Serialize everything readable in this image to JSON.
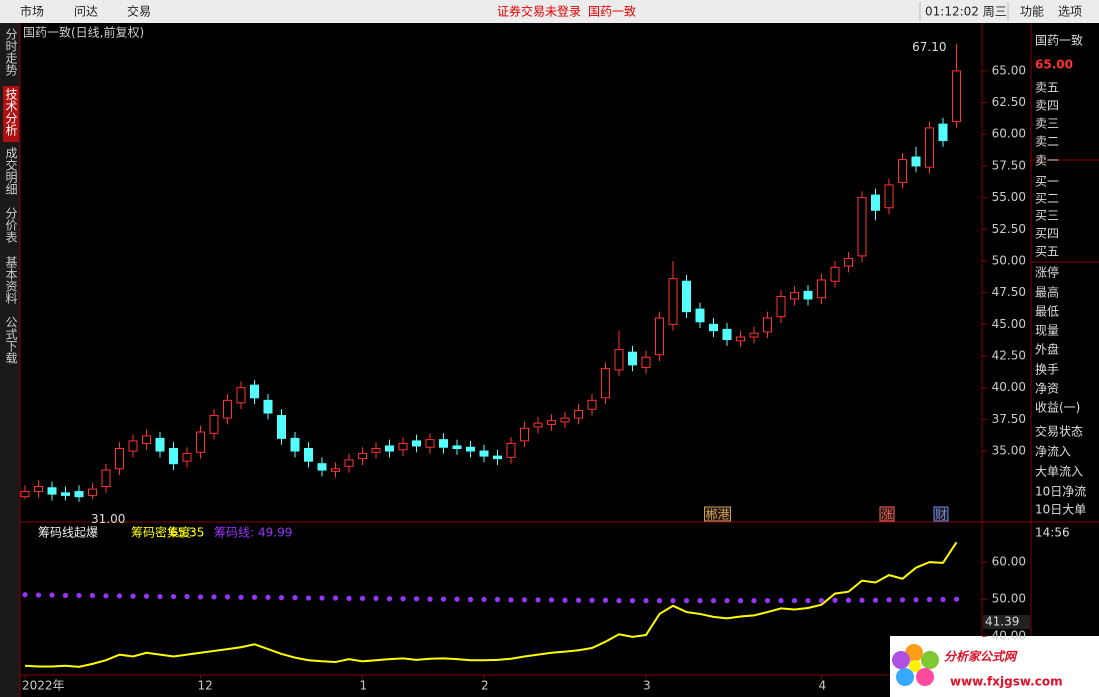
{
  "menu": {
    "items": [
      "市场",
      "问达",
      "交易"
    ],
    "status": "证券交易未登录",
    "stock": "国药一致",
    "time": "01:12:02 周三",
    "buttons": [
      "功能",
      "选项"
    ]
  },
  "side_tabs": [
    "分时走势",
    "技术分析",
    "成交明细",
    "分价表",
    "基本资料",
    "公式下载"
  ],
  "quote_panel": {
    "name": "国药一致",
    "price": "65.00",
    "rows": [
      "卖五",
      "卖四",
      "卖三",
      "卖二",
      "卖一",
      "买一",
      "买二",
      "买三",
      "买四",
      "买五",
      "涨停",
      "最高",
      "最低",
      "现量",
      "外盘",
      "换手",
      "净资",
      "收益(一)",
      "交易状态",
      "净流入",
      "大单流入",
      "10日净流",
      "10日大单"
    ],
    "time": "14:56"
  },
  "logo": {
    "title": "分析家公式网",
    "url": "www.fxjgsw.com"
  },
  "chart_data": [
    {
      "type": "candlestick",
      "title": "国药一致(日线,前复权)",
      "categories": [
        "2022年",
        null,
        null,
        null,
        null,
        null,
        null,
        null,
        null,
        null,
        null,
        null,
        null,
        "12",
        null,
        null,
        null,
        null,
        null,
        null,
        null,
        null,
        null,
        null,
        null,
        "1",
        null,
        null,
        null,
        null,
        null,
        null,
        null,
        null,
        "2",
        null,
        null,
        null,
        null,
        null,
        null,
        null,
        null,
        null,
        null,
        null,
        "3",
        null,
        null,
        null,
        null,
        null,
        null,
        null,
        null,
        null,
        null,
        null,
        null,
        "4",
        null,
        null,
        null,
        null,
        null,
        null,
        null,
        null,
        null,
        null
      ],
      "open": [
        31.4,
        31.8,
        32.1,
        31.7,
        31.8,
        31.5,
        32.2,
        33.6,
        35.0,
        35.6,
        36.0,
        35.2,
        34.2,
        34.9,
        36.4,
        37.6,
        38.8,
        40.2,
        39.0,
        37.8,
        36.0,
        35.2,
        34.0,
        33.4,
        33.8,
        34.4,
        34.9,
        35.4,
        35.1,
        35.8,
        35.3,
        35.9,
        35.4,
        35.3,
        35.0,
        34.6,
        34.5,
        35.8,
        36.9,
        37.1,
        37.3,
        37.6,
        38.3,
        39.2,
        41.4,
        42.8,
        41.6,
        42.6,
        45.0,
        48.4,
        46.2,
        45.0,
        44.6,
        43.7,
        44.0,
        44.4,
        45.6,
        47.0,
        47.6,
        47.1,
        48.4,
        49.6,
        50.4,
        55.2,
        54.2,
        56.2,
        58.2,
        57.4,
        60.8,
        61.0
      ],
      "high": [
        32.3,
        32.7,
        32.6,
        32.2,
        32.3,
        32.5,
        34.0,
        35.7,
        36.3,
        36.7,
        36.5,
        35.7,
        35.3,
        37.0,
        38.3,
        39.5,
        40.5,
        40.6,
        39.5,
        38.3,
        36.5,
        35.7,
        34.5,
        34.1,
        34.8,
        35.3,
        35.7,
        35.9,
        36.1,
        36.3,
        36.4,
        36.4,
        35.9,
        35.8,
        35.5,
        35.1,
        36.1,
        37.3,
        37.7,
        37.9,
        38.1,
        38.7,
        39.5,
        42.0,
        44.5,
        43.3,
        42.9,
        46.0,
        50.0,
        48.9,
        46.7,
        45.5,
        45.1,
        44.5,
        44.8,
        46.0,
        47.7,
        48.0,
        48.1,
        49.0,
        50.0,
        50.7,
        55.5,
        55.7,
        56.5,
        58.5,
        59.0,
        61.0,
        61.3,
        67.1
      ],
      "low": [
        31.2,
        31.3,
        31.1,
        31.1,
        31.0,
        31.2,
        31.7,
        33.1,
        34.5,
        35.1,
        34.5,
        33.5,
        33.7,
        34.4,
        35.9,
        37.1,
        38.3,
        38.7,
        37.5,
        35.5,
        34.5,
        33.7,
        33.0,
        32.9,
        33.3,
        33.9,
        34.4,
        34.5,
        34.6,
        34.9,
        34.8,
        34.8,
        34.7,
        34.5,
        34.1,
        33.9,
        34.0,
        35.3,
        36.4,
        36.6,
        36.8,
        37.1,
        37.8,
        38.7,
        40.9,
        41.3,
        41.1,
        42.1,
        44.5,
        45.5,
        44.7,
        44.0,
        43.3,
        43.2,
        43.5,
        43.9,
        45.1,
        46.5,
        46.5,
        46.6,
        47.9,
        49.1,
        49.9,
        53.2,
        53.7,
        55.7,
        57.0,
        56.9,
        59.0,
        60.5
      ],
      "close": [
        31.8,
        32.2,
        31.6,
        31.5,
        31.4,
        32.0,
        33.5,
        35.2,
        35.8,
        36.2,
        35.0,
        34.0,
        34.8,
        36.5,
        37.8,
        39.0,
        40.0,
        39.2,
        38.0,
        36.0,
        35.0,
        34.2,
        33.5,
        33.6,
        34.3,
        34.8,
        35.2,
        35.0,
        35.6,
        35.4,
        35.9,
        35.3,
        35.2,
        35.0,
        34.6,
        34.4,
        35.6,
        36.8,
        37.2,
        37.4,
        37.6,
        38.2,
        39.0,
        41.5,
        43.0,
        41.8,
        42.4,
        45.5,
        48.6,
        46.0,
        45.2,
        44.5,
        43.8,
        44.0,
        44.3,
        45.5,
        47.2,
        47.5,
        47.0,
        48.5,
        49.5,
        50.2,
        55.0,
        54.0,
        56.0,
        58.0,
        57.5,
        60.5,
        59.5,
        65.0
      ],
      "up_color": "#ff3232",
      "down_color": "#54ffff",
      "ylim": [
        29.4,
        68.7
      ],
      "yticks": [
        {
          "value": 35,
          "label": "35.00"
        },
        {
          "value": 37.5,
          "label": "37.50"
        },
        {
          "value": 40,
          "label": "40.00"
        },
        {
          "value": 42.5,
          "label": "42.50"
        },
        {
          "value": 45,
          "label": "45.00"
        },
        {
          "value": 47.5,
          "label": "47.50"
        },
        {
          "value": 50,
          "label": "50.00"
        },
        {
          "value": 52.5,
          "label": "52.50"
        },
        {
          "value": 55,
          "label": "55.00"
        },
        {
          "value": 57.5,
          "label": "57.50"
        },
        {
          "value": 60,
          "label": "60.00"
        },
        {
          "value": 62.5,
          "label": "62.50"
        },
        {
          "value": 65,
          "label": "65.00"
        }
      ],
      "max_label": "67.10",
      "min_label": "31.00",
      "events": [
        {
          "label": "郴港",
          "index": 51,
          "color": "#c8a060"
        },
        {
          "label": "涨",
          "index": 64,
          "color": "#ff6060"
        },
        {
          "label": "财",
          "index": 68,
          "color": "#6090ff"
        }
      ]
    },
    {
      "type": "line",
      "title": "筹码线起爆",
      "series": [
        {
          "name": "筹码密集度:",
          "color": "#ffff00",
          "values": [
            32,
            31.8,
            31.8,
            32,
            31.7,
            32.5,
            33.5,
            35,
            34.5,
            35.5,
            35,
            34.5,
            35,
            35.5,
            36,
            36.5,
            37,
            37.8,
            36.5,
            35.2,
            34.2,
            33.5,
            33.2,
            33,
            33.8,
            33.2,
            33.5,
            33.8,
            34,
            33.6,
            33.9,
            34,
            33.8,
            33.5,
            33.5,
            33.6,
            33.9,
            34.5,
            35,
            35.5,
            35.8,
            36.2,
            36.8,
            38.5,
            40.5,
            39.8,
            40.3,
            46,
            48.2,
            46.5,
            46,
            45.2,
            44.8,
            45.3,
            45.6,
            46.5,
            47.5,
            47.2,
            47.6,
            48.5,
            51.5,
            52,
            55,
            54.5,
            56.5,
            55.5,
            58.5,
            60,
            59.8,
            65.35
          ]
        },
        {
          "name": "筹码线:",
          "color": "#9933ff",
          "style": "dots",
          "values": [
            51.2,
            51.1,
            51.1,
            51.0,
            51.0,
            51.0,
            50.9,
            50.9,
            50.8,
            50.8,
            50.7,
            50.7,
            50.7,
            50.6,
            50.6,
            50.6,
            50.5,
            50.5,
            50.5,
            50.4,
            50.4,
            50.3,
            50.3,
            50.3,
            50.2,
            50.2,
            50.2,
            50.1,
            50.1,
            50.1,
            50.0,
            50.0,
            50.0,
            49.9,
            49.9,
            49.9,
            49.8,
            49.8,
            49.8,
            49.8,
            49.7,
            49.7,
            49.7,
            49.7,
            49.6,
            49.6,
            49.6,
            49.6,
            49.6,
            49.6,
            49.6,
            49.6,
            49.6,
            49.6,
            49.6,
            49.6,
            49.6,
            49.6,
            49.6,
            49.6,
            49.7,
            49.7,
            49.7,
            49.7,
            49.8,
            49.8,
            49.8,
            49.9,
            49.9,
            49.99
          ]
        }
      ],
      "ylim": [
        29.5,
        70.3
      ],
      "yticks": [
        {
          "value": 40,
          "label": "40.00"
        },
        {
          "value": 50,
          "label": "50.00"
        },
        {
          "value": 60,
          "label": "60.00"
        }
      ],
      "current": {
        "value": 41.39,
        "label": "41.39"
      }
    }
  ]
}
